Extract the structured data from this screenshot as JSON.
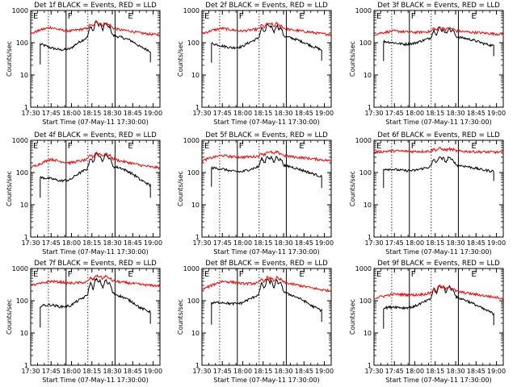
{
  "figure": {
    "layout": "3x3",
    "ylabel": "Counts/sec",
    "xlabel": "Start Time (07-May-11 17:30:00)",
    "xticks": [
      "17:30",
      "17:45",
      "18:00",
      "18:15",
      "18:30",
      "18:45",
      "19:00"
    ],
    "yticks": [
      "1",
      "10",
      "100",
      "1000"
    ],
    "interval_labels": [
      "E",
      "F",
      "E"
    ],
    "colors": {
      "events": "#000000",
      "lld": "#ff0000"
    }
  },
  "chart_data": [
    {
      "type": "line",
      "title": "Det 1f BLACK = Events, RED = LLD",
      "yscale": "log",
      "ylim": [
        1,
        1000
      ],
      "xlim_minutes": [
        0,
        95
      ],
      "dotted_lines_min": [
        13,
        42
      ],
      "solid_lines_min": [
        26,
        62
      ],
      "series": [
        {
          "name": "Events",
          "color": "#000000",
          "start": 7,
          "end": 88,
          "base": [
            70,
            90,
            70,
            60,
            65,
            110,
            160,
            200,
            170,
            150,
            120,
            75,
            55,
            45
          ],
          "peaks": [
            [
              44,
              2.0
            ],
            [
              48,
              2.5
            ],
            [
              51,
              1.9
            ],
            [
              55,
              2.2
            ],
            [
              58,
              1.8
            ]
          ]
        },
        {
          "name": "LLD",
          "color": "#ff0000",
          "start": 0,
          "end": 95,
          "base": [
            185,
            250,
            300,
            250,
            230,
            260,
            280,
            320,
            300,
            250,
            230,
            200,
            185,
            175
          ],
          "peaks": [
            [
              44,
              1.3
            ],
            [
              48,
              1.5
            ],
            [
              51,
              1.3
            ],
            [
              55,
              1.4
            ],
            [
              58,
              1.2
            ]
          ]
        }
      ]
    },
    {
      "type": "line",
      "title": "Det 2f BLACK = Events, RED = LLD",
      "yscale": "log",
      "ylim": [
        1,
        1000
      ],
      "xlim_minutes": [
        0,
        95
      ],
      "dotted_lines_min": [
        13,
        42
      ],
      "solid_lines_min": [
        26,
        62
      ],
      "series": [
        {
          "name": "Events",
          "color": "#000000",
          "start": 7,
          "end": 88,
          "base": [
            80,
            95,
            80,
            70,
            75,
            110,
            150,
            180,
            165,
            140,
            110,
            80,
            60,
            50
          ],
          "peaks": [
            [
              44,
              1.9
            ],
            [
              48,
              2.2
            ],
            [
              51,
              1.8
            ],
            [
              55,
              2.0
            ],
            [
              58,
              1.7
            ]
          ]
        },
        {
          "name": "LLD",
          "color": "#ff0000",
          "start": 0,
          "end": 95,
          "base": [
            190,
            240,
            280,
            250,
            230,
            250,
            270,
            300,
            290,
            250,
            230,
            210,
            190,
            180
          ],
          "peaks": [
            [
              44,
              1.3
            ],
            [
              48,
              1.4
            ],
            [
              51,
              1.3
            ],
            [
              55,
              1.35
            ],
            [
              58,
              1.2
            ]
          ]
        }
      ]
    },
    {
      "type": "line",
      "title": "Det 3f BLACK = Events, RED = LLD",
      "yscale": "log",
      "ylim": [
        1,
        1000
      ],
      "xlim_minutes": [
        0,
        95
      ],
      "dotted_lines_min": [
        13,
        42
      ],
      "solid_lines_min": [
        26,
        62
      ],
      "series": [
        {
          "name": "Events",
          "color": "#000000",
          "start": 7,
          "end": 88,
          "base": [
            90,
            110,
            100,
            90,
            95,
            120,
            150,
            170,
            160,
            140,
            120,
            95,
            80,
            70
          ],
          "peaks": [
            [
              44,
              1.6
            ],
            [
              48,
              1.8
            ],
            [
              51,
              1.5
            ],
            [
              55,
              1.7
            ],
            [
              58,
              1.5
            ]
          ]
        },
        {
          "name": "LLD",
          "color": "#ff0000",
          "start": 0,
          "end": 95,
          "base": [
            180,
            210,
            230,
            220,
            210,
            215,
            225,
            240,
            235,
            220,
            210,
            200,
            190,
            185
          ],
          "peaks": [
            [
              44,
              1.25
            ],
            [
              48,
              1.3
            ],
            [
              51,
              1.2
            ],
            [
              55,
              1.25
            ],
            [
              58,
              1.15
            ]
          ]
        }
      ]
    },
    {
      "type": "line",
      "title": "Det 4f BLACK = Events, RED = LLD",
      "yscale": "log",
      "ylim": [
        1,
        1000
      ],
      "xlim_minutes": [
        0,
        95
      ],
      "dotted_lines_min": [
        13,
        42
      ],
      "solid_lines_min": [
        26,
        62
      ],
      "series": [
        {
          "name": "Events",
          "color": "#000000",
          "start": 7,
          "end": 88,
          "base": [
            55,
            70,
            65,
            55,
            60,
            100,
            140,
            180,
            160,
            140,
            100,
            60,
            40,
            30
          ],
          "peaks": [
            [
              44,
              2.0
            ],
            [
              48,
              2.4
            ],
            [
              51,
              1.9
            ],
            [
              55,
              2.2
            ],
            [
              58,
              1.8
            ]
          ]
        },
        {
          "name": "LLD",
          "color": "#ff0000",
          "start": 0,
          "end": 95,
          "base": [
            140,
            190,
            260,
            220,
            200,
            230,
            260,
            300,
            280,
            230,
            200,
            170,
            150,
            140
          ],
          "peaks": [
            [
              44,
              1.35
            ],
            [
              48,
              1.5
            ],
            [
              51,
              1.3
            ],
            [
              55,
              1.4
            ],
            [
              58,
              1.2
            ]
          ]
        }
      ]
    },
    {
      "type": "line",
      "title": "Det 5f BLACK = Events, RED = LLD",
      "yscale": "log",
      "ylim": [
        1,
        1000
      ],
      "xlim_minutes": [
        0,
        95
      ],
      "dotted_lines_min": [
        13,
        42
      ],
      "solid_lines_min": [
        26,
        62
      ],
      "series": [
        {
          "name": "Events",
          "color": "#000000",
          "start": 7,
          "end": 88,
          "base": [
            120,
            140,
            130,
            110,
            105,
            130,
            160,
            180,
            170,
            150,
            120,
            95,
            75,
            60
          ],
          "peaks": [
            [
              44,
              1.7
            ],
            [
              48,
              1.9
            ],
            [
              51,
              1.6
            ],
            [
              55,
              1.8
            ],
            [
              58,
              1.5
            ]
          ]
        },
        {
          "name": "LLD",
          "color": "#ff0000",
          "start": 0,
          "end": 95,
          "base": [
            230,
            290,
            340,
            310,
            300,
            310,
            330,
            360,
            340,
            310,
            290,
            270,
            250,
            230
          ],
          "peaks": [
            [
              44,
              1.2
            ],
            [
              48,
              1.3
            ],
            [
              51,
              1.2
            ],
            [
              55,
              1.25
            ],
            [
              58,
              1.15
            ]
          ]
        }
      ]
    },
    {
      "type": "line",
      "title": "Det 6f BLACK = Events, RED = LLD",
      "yscale": "log",
      "ylim": [
        1,
        1000
      ],
      "xlim_minutes": [
        0,
        95
      ],
      "dotted_lines_min": [
        13,
        42
      ],
      "solid_lines_min": [
        26,
        62
      ],
      "series": [
        {
          "name": "Events",
          "color": "#000000",
          "start": 7,
          "end": 88,
          "base": [
            110,
            130,
            125,
            115,
            115,
            135,
            160,
            185,
            175,
            160,
            140,
            120,
            110,
            100
          ],
          "peaks": [
            [
              44,
              1.6
            ],
            [
              48,
              1.8
            ],
            [
              51,
              1.5
            ],
            [
              55,
              1.7
            ],
            [
              58,
              1.4
            ]
          ]
        },
        {
          "name": "LLD",
          "color": "#ff0000",
          "start": 0,
          "end": 95,
          "base": [
            430,
            450,
            470,
            460,
            450,
            455,
            465,
            480,
            470,
            455,
            445,
            435,
            430,
            425
          ],
          "peaks": [
            [
              44,
              1.15
            ],
            [
              48,
              1.2
            ],
            [
              51,
              1.1
            ],
            [
              55,
              1.15
            ],
            [
              58,
              1.1
            ]
          ]
        }
      ]
    },
    {
      "type": "line",
      "title": "Det 7f BLACK = Events, RED = LLD",
      "yscale": "log",
      "ylim": [
        1,
        1000
      ],
      "xlim_minutes": [
        0,
        95
      ],
      "dotted_lines_min": [
        13,
        42
      ],
      "solid_lines_min": [
        26,
        62
      ],
      "series": [
        {
          "name": "Events",
          "color": "#000000",
          "start": 7,
          "end": 88,
          "base": [
            50,
            70,
            75,
            65,
            70,
            110,
            160,
            200,
            180,
            140,
            100,
            60,
            45,
            35
          ],
          "peaks": [
            [
              44,
              2.2
            ],
            [
              48,
              2.6
            ],
            [
              51,
              2.0
            ],
            [
              55,
              2.3
            ],
            [
              58,
              1.9
            ]
          ]
        },
        {
          "name": "LLD",
          "color": "#ff0000",
          "start": 0,
          "end": 95,
          "base": [
            300,
            340,
            400,
            380,
            350,
            360,
            390,
            450,
            420,
            380,
            350,
            320,
            300,
            290
          ],
          "peaks": [
            [
              44,
              1.3
            ],
            [
              48,
              1.45
            ],
            [
              51,
              1.3
            ],
            [
              55,
              1.35
            ],
            [
              58,
              1.2
            ]
          ]
        }
      ]
    },
    {
      "type": "line",
      "title": "Det 8f BLACK = Events, RED = LLD",
      "yscale": "log",
      "ylim": [
        1,
        1000
      ],
      "xlim_minutes": [
        0,
        95
      ],
      "dotted_lines_min": [
        13,
        42
      ],
      "solid_lines_min": [
        26,
        62
      ],
      "series": [
        {
          "name": "Events",
          "color": "#000000",
          "start": 7,
          "end": 88,
          "base": [
            60,
            85,
            90,
            80,
            85,
            120,
            170,
            210,
            190,
            150,
            110,
            70,
            50,
            40
          ],
          "peaks": [
            [
              44,
              2.0
            ],
            [
              48,
              2.4
            ],
            [
              51,
              1.9
            ],
            [
              55,
              2.1
            ],
            [
              58,
              1.8
            ]
          ]
        },
        {
          "name": "LLD",
          "color": "#ff0000",
          "start": 0,
          "end": 95,
          "base": [
            220,
            300,
            400,
            380,
            340,
            340,
            360,
            400,
            380,
            330,
            290,
            250,
            220,
            200
          ],
          "peaks": [
            [
              44,
              1.3
            ],
            [
              48,
              1.4
            ],
            [
              51,
              1.25
            ],
            [
              55,
              1.35
            ],
            [
              58,
              1.2
            ]
          ]
        }
      ]
    },
    {
      "type": "line",
      "title": "Det 9f BLACK = Events, RED = LLD",
      "yscale": "log",
      "ylim": [
        1,
        1000
      ],
      "xlim_minutes": [
        0,
        95
      ],
      "dotted_lines_min": [
        13,
        42
      ],
      "solid_lines_min": [
        26,
        62
      ],
      "series": [
        {
          "name": "Events",
          "color": "#000000",
          "start": 7,
          "end": 88,
          "base": [
            45,
            60,
            65,
            60,
            65,
            90,
            120,
            150,
            135,
            110,
            80,
            55,
            40,
            32
          ],
          "peaks": [
            [
              44,
              1.9
            ],
            [
              48,
              2.2
            ],
            [
              51,
              1.8
            ],
            [
              55,
              2.0
            ],
            [
              58,
              1.7
            ]
          ]
        },
        {
          "name": "LLD",
          "color": "#ff0000",
          "start": 0,
          "end": 95,
          "base": [
            120,
            140,
            160,
            155,
            150,
            160,
            180,
            210,
            200,
            180,
            160,
            145,
            130,
            120
          ],
          "peaks": [
            [
              44,
              1.3
            ],
            [
              48,
              1.5
            ],
            [
              51,
              1.3
            ],
            [
              55,
              1.4
            ],
            [
              58,
              1.2
            ]
          ]
        }
      ]
    }
  ]
}
